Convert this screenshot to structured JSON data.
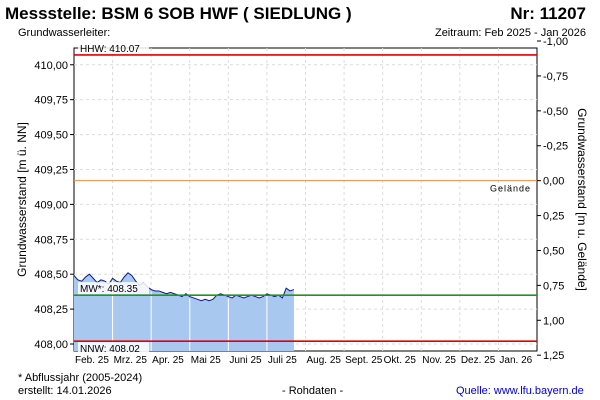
{
  "header": {
    "title": "Messstelle: BSM  6 SOB HWF ( SIEDLUNG )",
    "number": "Nr: 11207",
    "aquifer": "Grundwasserleiter:",
    "period": "Zeitraum: Feb 2025 - Jan 2026"
  },
  "footer": {
    "note": "* Abflussjahr (2005-2024)",
    "created": "erstellt:  14.01.2026",
    "raw": "- Rohdaten -",
    "source": "Quelle: www.lfu.bayern.de"
  },
  "colors": {
    "hhw": "#e00000",
    "nnw": "#e00000",
    "mw": "#1a9a1a",
    "gelaende": "#e09050",
    "fill": "#a8c8f0",
    "line": "#0a1a8a"
  },
  "chart_data": {
    "type": "area",
    "ylabel": "Grundwasserstand [m ü. NN]",
    "y2label": "Grundwasserstand [m u. Gelände]",
    "ylim": [
      407.95,
      410.12
    ],
    "yticks": [
      {
        "v": 410.0,
        "label": "410,00"
      },
      {
        "v": 409.75,
        "label": "409,75"
      },
      {
        "v": 409.5,
        "label": "409,50"
      },
      {
        "v": 409.25,
        "label": "409,25"
      },
      {
        "v": 409.0,
        "label": "409,00"
      },
      {
        "v": 408.75,
        "label": "408,75"
      },
      {
        "v": 408.5,
        "label": "408,50"
      },
      {
        "v": 408.25,
        "label": "408,25"
      },
      {
        "v": 408.0,
        "label": "408,00"
      }
    ],
    "y2ticks": [
      {
        "v": 410.17,
        "label": "-1,00"
      },
      {
        "v": 409.92,
        "label": "-0,75"
      },
      {
        "v": 409.67,
        "label": "-0,50"
      },
      {
        "v": 409.42,
        "label": "-0,25"
      },
      {
        "v": 409.17,
        "label": "0,00"
      },
      {
        "v": 408.92,
        "label": "0,25"
      },
      {
        "v": 408.67,
        "label": "0,50"
      },
      {
        "v": 408.42,
        "label": "0,75"
      },
      {
        "v": 408.17,
        "label": "1,00"
      },
      {
        "v": 407.92,
        "label": "1,25"
      }
    ],
    "months": [
      "Feb. 25",
      "Mrz. 25",
      "Apr. 25",
      "Mai 25",
      "Juni 25",
      "Juli 25",
      "Aug. 25",
      "Sept. 25",
      "Okt. 25",
      "Nov. 25",
      "Dez. 25",
      "Jan. 26"
    ],
    "x_end_month": 12,
    "reference_lines": [
      {
        "key": "hhw",
        "label": "HHW: 410.07",
        "value": 410.07,
        "label_pos": "left"
      },
      {
        "key": "gelaende",
        "label": "Gelände",
        "value": 409.17,
        "label_pos": "right"
      },
      {
        "key": "mw",
        "label": "MW*: 408.35",
        "value": 408.35,
        "label_pos": "left"
      },
      {
        "key": "nnw",
        "label": "NNW: 408.02",
        "value": 408.02,
        "label_pos": "left"
      }
    ],
    "x": [
      0,
      0.1,
      0.2,
      0.3,
      0.4,
      0.5,
      0.6,
      0.7,
      0.8,
      0.9,
      1.0,
      1.1,
      1.2,
      1.3,
      1.4,
      1.5,
      1.6,
      1.7,
      1.8,
      1.9,
      2.0,
      2.1,
      2.2,
      2.3,
      2.4,
      2.5,
      2.6,
      2.7,
      2.8,
      2.9,
      3.0,
      3.1,
      3.2,
      3.3,
      3.4,
      3.5,
      3.6,
      3.7,
      3.8,
      3.9,
      4.0,
      4.1,
      4.2,
      4.3,
      4.4,
      4.5,
      4.6,
      4.7,
      4.8,
      4.9,
      5.0,
      5.1,
      5.2,
      5.3,
      5.4,
      5.5,
      5.6,
      5.7
    ],
    "y": [
      408.49,
      408.46,
      408.45,
      408.48,
      408.5,
      408.47,
      408.44,
      408.46,
      408.45,
      408.43,
      408.47,
      408.45,
      408.44,
      408.48,
      408.51,
      408.49,
      408.45,
      408.42,
      408.44,
      408.41,
      408.39,
      408.38,
      408.38,
      408.37,
      408.36,
      408.37,
      408.36,
      408.35,
      408.34,
      408.36,
      408.34,
      408.33,
      408.32,
      408.31,
      408.32,
      408.31,
      408.32,
      408.35,
      408.36,
      408.35,
      408.34,
      408.33,
      408.35,
      408.34,
      408.33,
      408.34,
      408.35,
      408.34,
      408.33,
      408.34,
      408.36,
      408.35,
      408.34,
      408.35,
      408.33,
      408.4,
      408.38,
      408.39
    ]
  }
}
